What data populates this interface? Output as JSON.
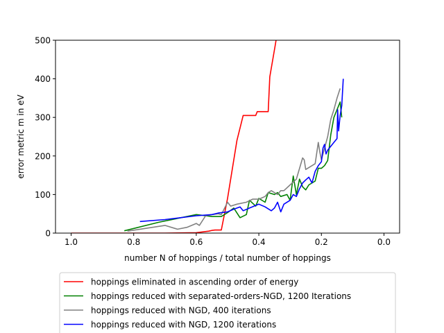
{
  "chart_data": {
    "type": "line",
    "title": "",
    "xlabel": "number N of hoppings / total number of hoppings",
    "ylabel": "error metric m in eV",
    "xlim": [
      1.05,
      -0.05
    ],
    "ylim": [
      0,
      500
    ],
    "x_inverted": true,
    "xticks": [
      1.0,
      0.8,
      0.6,
      0.4,
      0.2,
      0.0
    ],
    "xtick_labels": [
      "1.0",
      "0.8",
      "0.6",
      "0.4",
      "0.2",
      "0.0"
    ],
    "yticks": [
      0,
      100,
      200,
      300,
      400,
      500
    ],
    "ytick_labels": [
      "0",
      "100",
      "200",
      "300",
      "400",
      "500"
    ],
    "grid": false,
    "legend_placement": "below-plot",
    "series": [
      {
        "name": "hoppings eliminated in ascending order of energy",
        "color": "#ff0000",
        "x": [
          1.0,
          0.9,
          0.8,
          0.7,
          0.6,
          0.56,
          0.55,
          0.54,
          0.53,
          0.52,
          0.5,
          0.47,
          0.45,
          0.43,
          0.41,
          0.405,
          0.4,
          0.37,
          0.365,
          0.347,
          0.345
        ],
        "y": [
          0,
          0,
          0,
          0,
          1,
          5,
          7,
          8,
          8,
          8,
          90,
          240,
          305,
          305,
          305,
          315,
          315,
          315,
          405,
          490,
          500
        ]
      },
      {
        "name": "hoppings reduced with separated-orders-NGD, 1200 Iterations",
        "color": "#008000",
        "x": [
          0.83,
          0.72,
          0.6,
          0.55,
          0.52,
          0.5,
          0.48,
          0.46,
          0.44,
          0.43,
          0.41,
          0.4,
          0.38,
          0.37,
          0.35,
          0.34,
          0.33,
          0.31,
          0.3,
          0.29,
          0.28,
          0.27,
          0.26,
          0.25,
          0.24,
          0.22,
          0.21,
          0.2,
          0.19,
          0.18,
          0.17,
          0.16,
          0.15,
          0.14,
          0.135
        ],
        "y": [
          6,
          28,
          48,
          43,
          43,
          53,
          65,
          40,
          48,
          85,
          70,
          90,
          80,
          105,
          100,
          105,
          95,
          100,
          85,
          148,
          100,
          140,
          120,
          112,
          125,
          135,
          168,
          168,
          175,
          188,
          255,
          300,
          320,
          340,
          300
        ]
      },
      {
        "name": "hoppings reduced with NGD, 400 iterations",
        "color": "#808080",
        "x": [
          0.82,
          0.7,
          0.66,
          0.63,
          0.6,
          0.59,
          0.57,
          0.55,
          0.53,
          0.52,
          0.5,
          0.49,
          0.47,
          0.44,
          0.42,
          0.4,
          0.38,
          0.37,
          0.36,
          0.34,
          0.33,
          0.32,
          0.3,
          0.28,
          0.26,
          0.255,
          0.25,
          0.22,
          0.21,
          0.205,
          0.2,
          0.19,
          0.18,
          0.17,
          0.16,
          0.15,
          0.14
        ],
        "y": [
          5,
          20,
          10,
          15,
          25,
          20,
          45,
          48,
          50,
          48,
          80,
          70,
          75,
          80,
          88,
          88,
          95,
          105,
          110,
          100,
          110,
          110,
          125,
          140,
          195,
          190,
          165,
          180,
          235,
          210,
          190,
          220,
          250,
          295,
          320,
          350,
          375
        ]
      },
      {
        "name": "hoppings reduced with NGD, 1200 iterations",
        "color": "#0000ff",
        "x": [
          0.78,
          0.7,
          0.6,
          0.55,
          0.53,
          0.5,
          0.48,
          0.46,
          0.45,
          0.43,
          0.4,
          0.38,
          0.36,
          0.35,
          0.34,
          0.33,
          0.32,
          0.3,
          0.29,
          0.28,
          0.27,
          0.26,
          0.25,
          0.24,
          0.23,
          0.22,
          0.21,
          0.2,
          0.195,
          0.19,
          0.185,
          0.18,
          0.17,
          0.16,
          0.15,
          0.148,
          0.145,
          0.14,
          0.135,
          0.13
        ],
        "y": [
          30,
          35,
          45,
          48,
          52,
          55,
          62,
          68,
          58,
          65,
          75,
          68,
          58,
          65,
          80,
          55,
          75,
          85,
          100,
          95,
          115,
          130,
          138,
          145,
          130,
          160,
          175,
          185,
          220,
          230,
          205,
          215,
          225,
          235,
          245,
          320,
          265,
          305,
          330,
          400
        ]
      }
    ]
  }
}
